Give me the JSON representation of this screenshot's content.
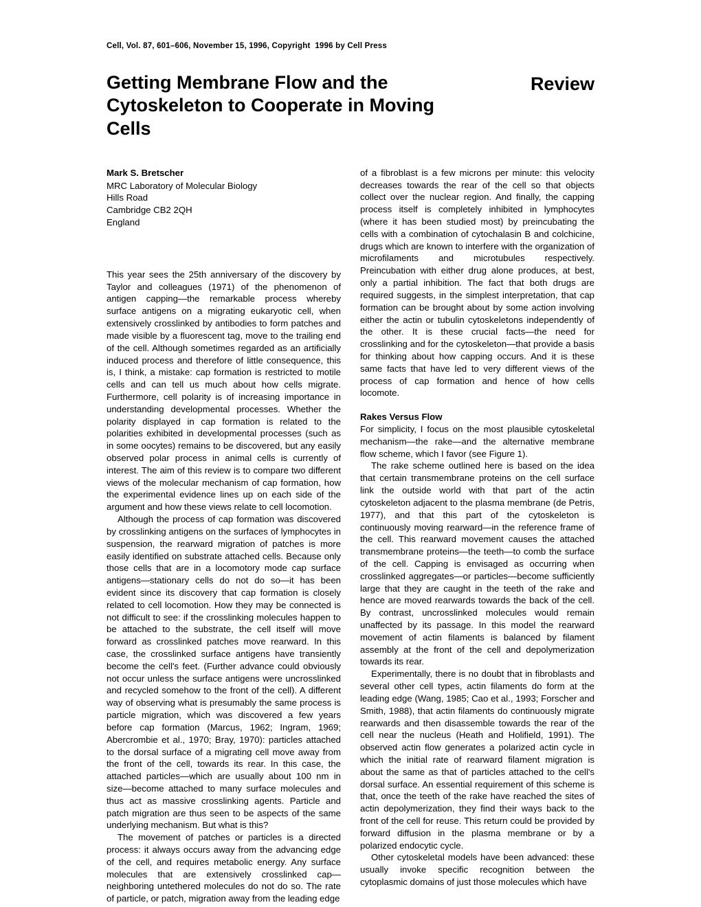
{
  "header": "Cell, Vol. 87, 601–606, November 15, 1996, Copyright  1996 by Cell Press",
  "title": "Getting Membrane Flow and the Cytoskeleton to Cooperate in Moving Cells",
  "review_label": "Review",
  "author": "Mark S. Bretscher",
  "affil_1": "MRC Laboratory of Molecular Biology",
  "affil_2": "Hills Road",
  "affil_3": "Cambridge CB2 2QH",
  "affil_4": "England",
  "left_p1": "This year sees the 25th anniversary of the discovery by Taylor and colleagues (1971) of the phenomenon of antigen capping—the remarkable process whereby surface antigens on a migrating eukaryotic cell, when extensively crosslinked by antibodies to form patches and made visible by a fluorescent tag, move to the trailing end of the cell. Although sometimes regarded as an artificially induced process and therefore of little consequence, this is, I think, a mistake: cap formation is restricted to motile cells and can tell us much about how cells migrate. Furthermore, cell polarity is of increasing importance in understanding developmental processes. Whether the polarity displayed in cap formation is related to the polarities exhibited in developmental processes (such as in some oocytes) remains to be discovered, but any easily observed polar process in animal cells is currently of interest. The aim of this review is to compare two different views of the molecular mechanism of cap formation, how the experimental evidence lines up on each side of the argument and how these views relate to cell locomotion.",
  "left_p2": "Although the process of cap formation was discovered by crosslinking antigens on the surfaces of lymphocytes in suspension, the rearward migration of patches is more easily identified on substrate attached cells. Because only those cells that are in a locomotory mode cap surface antigens—stationary cells do not do so—it has been evident since its discovery that cap formation is closely related to cell locomotion. How they may be connected is not difficult to see: if the crosslinking molecules happen to be attached to the substrate, the cell itself will move forward as crosslinked patches move rearward. In this case, the crosslinked surface antigens have transiently become the cell's feet. (Further advance could obviously not occur unless the surface antigens were uncrosslinked and recycled somehow to the front of the cell). A different way of observing what is presumably the same process is particle migration, which was discovered a few years before cap formation (Marcus, 1962; Ingram, 1969; Abercrombie et al., 1970; Bray, 1970): particles attached to the dorsal surface of a migrating cell move away from the front of the cell, towards its rear. In this case, the attached particles—which are usually about 100 nm in size—become attached to many surface molecules and thus act as massive crosslinking agents. Particle and patch migration are thus seen to be aspects of the same underlying mechanism. But what is this?",
  "left_p3": "The movement of patches or particles is a directed process: it always occurs away from the advancing edge of the cell, and requires metabolic energy. Any surface molecules that are extensively crosslinked cap—neighboring untethered molecules do not do so. The rate of particle, or patch, migration away from the leading edge",
  "right_p1": "of a fibroblast is a few microns per minute: this velocity decreases towards the rear of the cell so that objects collect over the nuclear region. And finally, the capping process itself is completely inhibited in lymphocytes (where it has been studied most) by preincubating the cells with a combination of cytochalasin B and colchicine, drugs which are known to interfere with the organization of microfilaments and microtubules respectively. Preincubation with either drug alone produces, at best, only a partial inhibition. The fact that both drugs are required suggests, in the simplest interpretation, that cap formation can be brought about by some action involving either the actin or tubulin cytoskeletons independently of the other. It is these crucial facts—the need for crosslinking and for the cytoskeleton—that provide a basis for thinking about how capping occurs. And it is these same facts that have led to very different views of the process of cap formation and hence of how cells locomote.",
  "section_heading": "Rakes Versus Flow",
  "right_p2": "For simplicity, I focus on the most plausible cytoskeletal mechanism—the rake—and the alternative membrane flow scheme, which I favor (see Figure 1).",
  "right_p3": "The rake scheme outlined here is based on the idea that certain transmembrane proteins on the cell surface link the outside world with that part of the actin cytoskeleton adjacent to the plasma membrane (de Petris, 1977), and that this part of the cytoskeleton is continuously moving rearward—in the reference frame of the cell. This rearward movement causes the attached transmembrane proteins—the teeth—to comb the surface of the cell. Capping is envisaged as occurring when crosslinked aggregates—or particles—become sufficiently large that they are caught in the teeth of the rake and hence are moved rearwards towards the back of the cell. By contrast, uncrosslinked molecules would remain unaffected by its passage. In this model the rearward movement of actin filaments is balanced by filament assembly at the front of the cell and depolymerization towards its rear.",
  "right_p4": "Experimentally, there is no doubt that in fibroblasts and several other cell types, actin filaments do form at the leading edge (Wang, 1985; Cao et al., 1993; Forscher and Smith, 1988), that actin filaments do continuously migrate rearwards and then disassemble towards the rear of the cell near the nucleus (Heath and Holifield, 1991). The observed actin flow generates a polarized actin cycle in which the initial rate of rearward filament migration is about the same as that of particles attached to the cell's dorsal surface. An essential requirement of this scheme is that, once the teeth of the rake have reached the sites of actin depolymerization, they find their ways back to the front of the cell for reuse. This return could be provided by forward diffusion in the plasma membrane or by a polarized endocytic cycle.",
  "right_p5": "Other cytoskeletal models have been advanced: these usually invoke specific recognition between the cytoplasmic domains of just those molecules which have"
}
